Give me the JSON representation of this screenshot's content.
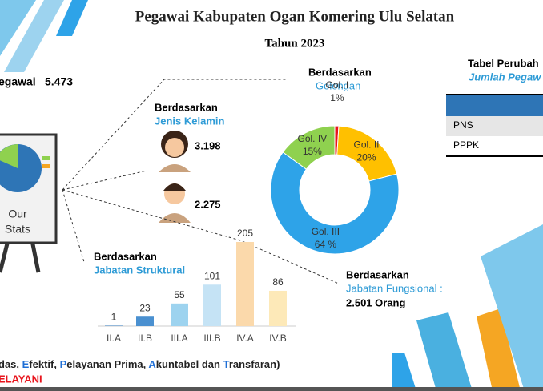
{
  "header": {
    "title": "Pegawai Kabupaten Ogan Komering Ulu Selatan",
    "subtitle": "Tahun 2023"
  },
  "total": {
    "label": "egawai",
    "value": "5.473"
  },
  "stats": {
    "line1": "Our",
    "line2": "Stats"
  },
  "gender": {
    "heading": "Berdasarkan",
    "subheading": "Jenis Kelamin",
    "female": "3.198",
    "male": "2.275"
  },
  "golongan": {
    "heading": "Berdasarkan",
    "subheading": "Golongan"
  },
  "table": {
    "title": "Tabel Perubah",
    "subtitle": "Jumlah Pegaw",
    "rows": [
      "PNS",
      "PPPK"
    ]
  },
  "struktural": {
    "heading": "Berdasarkan",
    "subheading": "Jabatan Struktural"
  },
  "fungsional": {
    "heading": "Berdasarkan",
    "subheading": "Jabatan Fungsional :",
    "value": "2.501 Orang"
  },
  "footer": {
    "segments": [
      "das, ",
      "E",
      "fektif, ",
      "P",
      "elayanan Prima, ",
      "A",
      "kuntabel dan ",
      "T",
      "ransfaran)"
    ],
    "line2": "ELAYANI"
  },
  "chart_data": [
    {
      "type": "pie",
      "categories": [
        "Gol. I",
        "Gol. II",
        "Gol. III",
        "Gol. IV"
      ],
      "values": [
        1,
        20,
        64,
        15
      ],
      "value_labels": [
        "1%",
        "20%",
        "64 %",
        "15%"
      ],
      "colors": [
        "#e8141c",
        "#ffc000",
        "#2ea3e8",
        "#8fd14f"
      ]
    },
    {
      "type": "bar",
      "categories": [
        "II.A",
        "II.B",
        "III.A",
        "III.B",
        "IV.A",
        "IV.B"
      ],
      "values": [
        1,
        23,
        55,
        101,
        205,
        86
      ],
      "colors": [
        "#2e75b6",
        "#4a90d0",
        "#9dd3ef",
        "#c5e3f5",
        "#fbd9ab",
        "#fde9b8"
      ]
    }
  ]
}
